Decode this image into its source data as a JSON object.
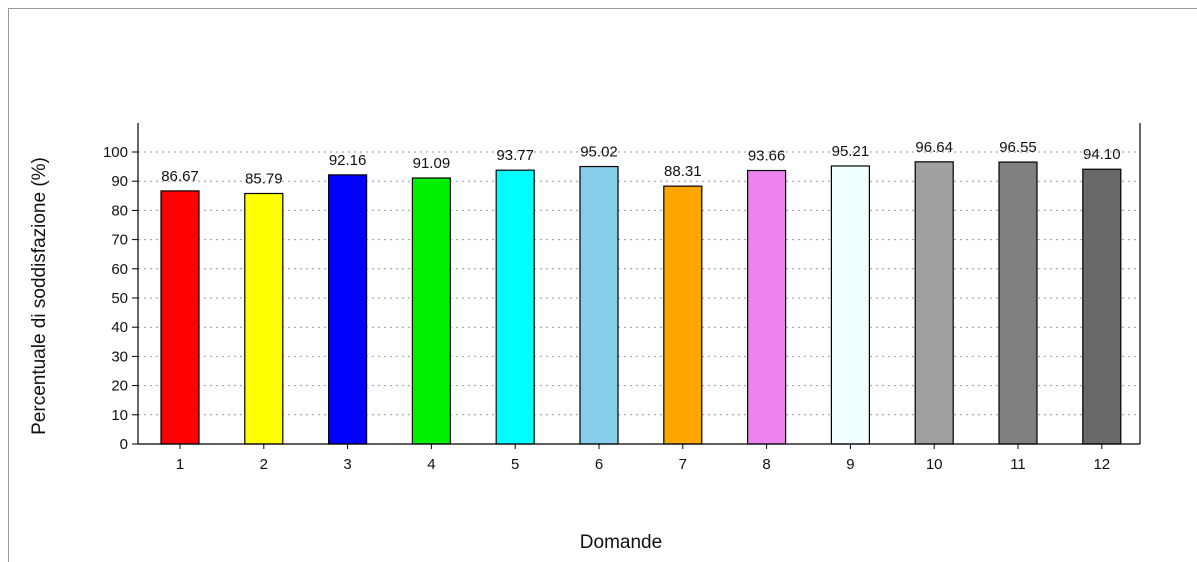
{
  "chart_data": {
    "type": "bar",
    "title": "",
    "xlabel": "Domande",
    "ylabel": "Percentuale di soddisfazione (%)",
    "categories": [
      "1",
      "2",
      "3",
      "4",
      "5",
      "6",
      "7",
      "8",
      "9",
      "10",
      "11",
      "12"
    ],
    "values": [
      86.67,
      85.79,
      92.16,
      91.09,
      93.77,
      95.02,
      88.31,
      93.66,
      95.21,
      96.64,
      96.55,
      94.1
    ],
    "value_labels": [
      "86.67",
      "85.79",
      "92.16",
      "91.09",
      "93.77",
      "95.02",
      "88.31",
      "93.66",
      "95.21",
      "96.64",
      "96.55",
      "94.10"
    ],
    "colors": [
      "#ff0000",
      "#ffff00",
      "#0000ff",
      "#00ee00",
      "#00ffff",
      "#87ceeb",
      "#ffa500",
      "#ee82ee",
      "#f0ffff",
      "#a0a0a0",
      "#808080",
      "#696969"
    ],
    "ylim": [
      0,
      100
    ],
    "yticks": [
      0,
      10,
      20,
      30,
      40,
      50,
      60,
      70,
      80,
      90,
      100
    ],
    "grid": true,
    "legend": "none"
  }
}
